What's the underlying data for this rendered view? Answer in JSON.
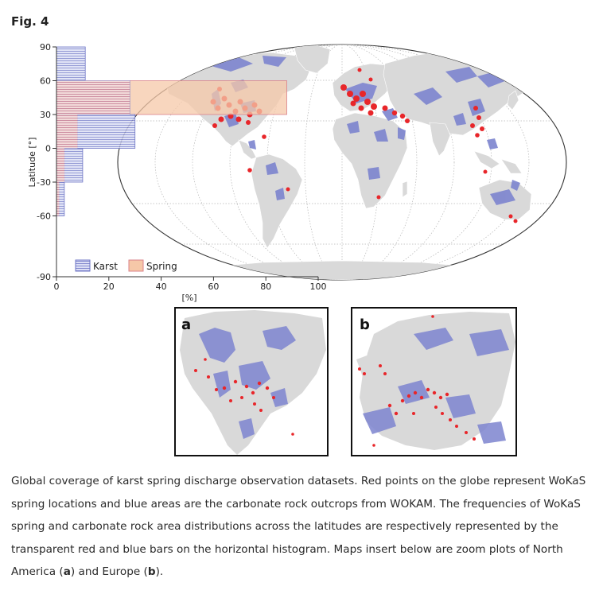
{
  "figure": {
    "label": "Fig. 4",
    "y_axis_label": "Latitude [°]",
    "x_axis_unit": "[%]",
    "y_ticks": [
      "90",
      "60",
      "30",
      "0",
      "-30",
      "-60",
      "-90"
    ],
    "x_ticks": [
      "0",
      "20",
      "40",
      "60",
      "80",
      "100"
    ],
    "legend": {
      "karst": "Karst",
      "spring": "Spring"
    },
    "inset_a_label": "a",
    "inset_b_label": "b",
    "colors": {
      "karst_fill": "#c9cdee",
      "karst_stroke": "#6e76c6",
      "spring_fill": "#f6c8a8",
      "spring_stroke": "#d9808a",
      "land": "#d9d9d9",
      "carbonate": "#7d84cf",
      "spring_point": "#e8262a"
    }
  },
  "chart_data": {
    "type": "bar",
    "orientation": "horizontal",
    "categories": [
      "60 to 90",
      "30 to 60",
      "0 to 30",
      "-30 to 0",
      "-60 to -30",
      "-90 to -60"
    ],
    "series": [
      {
        "name": "Karst",
        "values": [
          11,
          28,
          30,
          10,
          3,
          0
        ]
      },
      {
        "name": "Spring",
        "values": [
          0,
          88,
          8,
          3,
          1,
          0
        ]
      }
    ],
    "ylabel": "Latitude [°]",
    "xlabel": "[%]",
    "xlim": [
      0,
      100
    ],
    "ylim": [
      -90,
      90
    ]
  },
  "caption": {
    "p1": "Global coverage of karst spring discharge observation datasets. Red points on the globe represent WoKaS spring locations and blue areas are the carbonate rock outcrops from WOKAM. The frequencies of WoKaS spring and carbonate rock area distributions across the latitudes are respectively represented by the transparent red and blue bars on the horizontal histogram. Maps insert below are zoom plots of North America (",
    "a": "a",
    "mid": ") and Europe (",
    "b": "b",
    "end": ")."
  }
}
